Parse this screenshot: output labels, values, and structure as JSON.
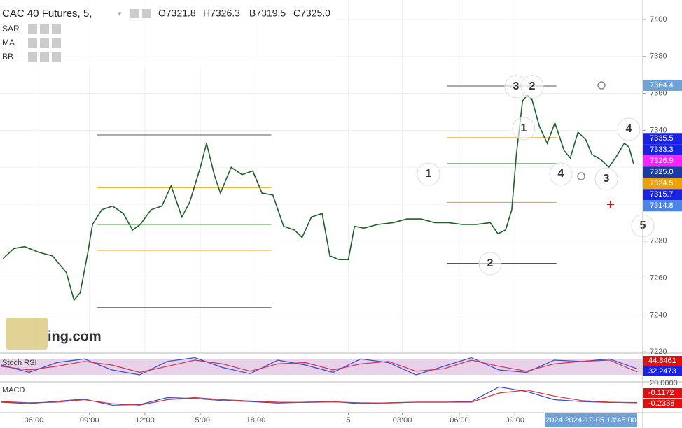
{
  "chart_data": {
    "type": "line",
    "title": "CAC 40 Futures, 5,",
    "ohlc": [
      "O7321.8",
      "H7326.3",
      "B7319.5",
      "C7325.0"
    ],
    "indicators": [
      "SAR",
      "MA",
      "BB"
    ],
    "watermark": "ing.com",
    "color": "#1f5f2a",
    "x": [
      2,
      9,
      16,
      25,
      34,
      43,
      48,
      52,
      57,
      60,
      66,
      73,
      80,
      86,
      91,
      98,
      105,
      111,
      118,
      123,
      130,
      134,
      139,
      143,
      150,
      157,
      164,
      170,
      177,
      184,
      191,
      196,
      202,
      209,
      214,
      220,
      226,
      230,
      236,
      245,
      255,
      264,
      273,
      282,
      291,
      300,
      309,
      318,
      323,
      328,
      332,
      335,
      339,
      342,
      345,
      350,
      355,
      360,
      366,
      370,
      375,
      380,
      384,
      390,
      395,
      400,
      405,
      408,
      411
    ],
    "values": [
      7270.5,
      7276,
      7277,
      7274,
      7272,
      7263,
      7248,
      7252,
      7274,
      7289,
      7297,
      7299,
      7295,
      7286,
      7289,
      7297,
      7299,
      7310,
      7293,
      7301,
      7320,
      7333,
      7316,
      7306,
      7320,
      7316,
      7318,
      7306,
      7305,
      7288,
      7286,
      7282,
      7293,
      7295,
      7272,
      7270,
      7270,
      7288,
      7287,
      7289,
      7290,
      7292,
      7292,
      7290,
      7290,
      7289,
      7289,
      7290,
      7284,
      7286,
      7297,
      7327,
      7356,
      7359,
      7357,
      7342,
      7333,
      7344,
      7329,
      7325,
      7339,
      7335,
      7327,
      7324,
      7320,
      7326,
      7333,
      7331,
      7322
    ],
    "xlim": [
      0,
      417
    ],
    "ylim": [
      7219.3,
      7410.6
    ],
    "yticks": [
      7220,
      7240,
      7260,
      7280,
      7300,
      7320,
      7340,
      7360,
      7380,
      7400
    ],
    "xticks": [
      {
        "value": 22,
        "label": "06:00"
      },
      {
        "value": 58,
        "label": "09:00"
      },
      {
        "value": 94,
        "label": "12:00"
      },
      {
        "value": 130,
        "label": "15:00"
      },
      {
        "value": 166,
        "label": "18:00"
      },
      {
        "value": 226,
        "label": "5"
      },
      {
        "value": 261,
        "label": "03:00"
      },
      {
        "value": 298,
        "label": "06:00"
      },
      {
        "value": 334,
        "label": "09:00"
      }
    ],
    "cursor_label": "2024 2024-12-05 13:45:00",
    "grid": true,
    "price_labels": [
      {
        "value": 7364.4,
        "color": "#6fa3d8"
      },
      {
        "value": 7335.5,
        "color": "#1a22e6"
      },
      {
        "value": 7333.3,
        "color": "#1a22e6"
      },
      {
        "value": 7326.9,
        "color": "#ff22ff"
      },
      {
        "value": 7325,
        "label": "7325.0",
        "color": "#1a3aa8"
      },
      {
        "value": 7324.5,
        "color": "#f0a000"
      },
      {
        "value": 7315.7,
        "color": "#1a22e6"
      },
      {
        "value": 7314.8,
        "color": "#4a86e8"
      }
    ],
    "fib_groups": [
      {
        "x": [
          63,
          176
        ],
        "levels": [
          {
            "value": 7337.5,
            "color": "#555555"
          },
          {
            "value": 7309,
            "color": "#e0a000"
          },
          {
            "value": 7289,
            "color": "#3aa33a"
          },
          {
            "value": 7275,
            "color": "#e0a000"
          },
          {
            "value": 7244,
            "color": "#555555"
          }
        ]
      },
      {
        "x": [
          290,
          361
        ],
        "levels": [
          {
            "value": 7364,
            "color": "#555555"
          },
          {
            "value": 7336,
            "color": "#e0a000"
          },
          {
            "value": 7322,
            "color": "#3aa33a"
          },
          {
            "value": 7301,
            "color": "#e0a000"
          },
          {
            "value": 7268,
            "color": "#555555"
          }
        ]
      }
    ],
    "annotations": [
      {
        "text": "1",
        "color": "#e01010"
      },
      {
        "text": "2",
        "color": "#e01010"
      },
      {
        "text": "3",
        "color": "#e01010"
      },
      {
        "text": "4",
        "color": "#e01010"
      },
      {
        "text": "2",
        "color": "#2a2a8a"
      },
      {
        "text": "1",
        "color": "#2a2a8a"
      },
      {
        "text": "3",
        "color": "#2a2a8a"
      },
      {
        "text": "4",
        "color": "#2a2a8a"
      },
      {
        "text": "5",
        "color": "#2a2a8a"
      }
    ],
    "stoch": {
      "label": "Stoch RSI",
      "ylim": [
        0,
        100
      ],
      "k": [
        60,
        30,
        70,
        85,
        40,
        20,
        75,
        90,
        50,
        25,
        80,
        60,
        30,
        85,
        70,
        20,
        55,
        90,
        40,
        30,
        80,
        75,
        85,
        45
      ],
      "d": [
        55,
        40,
        55,
        75,
        60,
        30,
        55,
        80,
        65,
        35,
        65,
        70,
        40,
        65,
        75,
        35,
        45,
        80,
        55,
        35,
        65,
        75,
        80,
        32
      ],
      "readouts": [
        {
          "value": 44.8461,
          "color": "#e01010"
        },
        {
          "value": 32.2473,
          "color": "#1a22e6"
        }
      ]
    },
    "macd": {
      "label": "MACD",
      "ylim": [
        -3,
        6
      ],
      "tick": {
        "value": 20,
        "label": "20.0000"
      },
      "macd": [
        0,
        -0.5,
        0.3,
        1,
        -1,
        -0.8,
        1.5,
        1.2,
        0.5,
        0.2,
        -0.3,
        0,
        0.2,
        -0.5,
        -0.2,
        0,
        0,
        0.2,
        5,
        3.5,
        0.8,
        0.2,
        -0.1,
        -0.1172
      ],
      "signal": [
        0.2,
        -0.2,
        0,
        0.8,
        -0.5,
        -1,
        0.8,
        1.5,
        0.8,
        0.4,
        0,
        -0.1,
        0.1,
        -0.2,
        -0.3,
        0,
        0,
        0,
        3,
        4,
        2,
        0.5,
        0,
        -0.2338
      ],
      "readouts": [
        {
          "value": -0.1172,
          "color": "#e01010"
        },
        {
          "value": -0.2338,
          "color": "#e01010"
        }
      ]
    }
  }
}
